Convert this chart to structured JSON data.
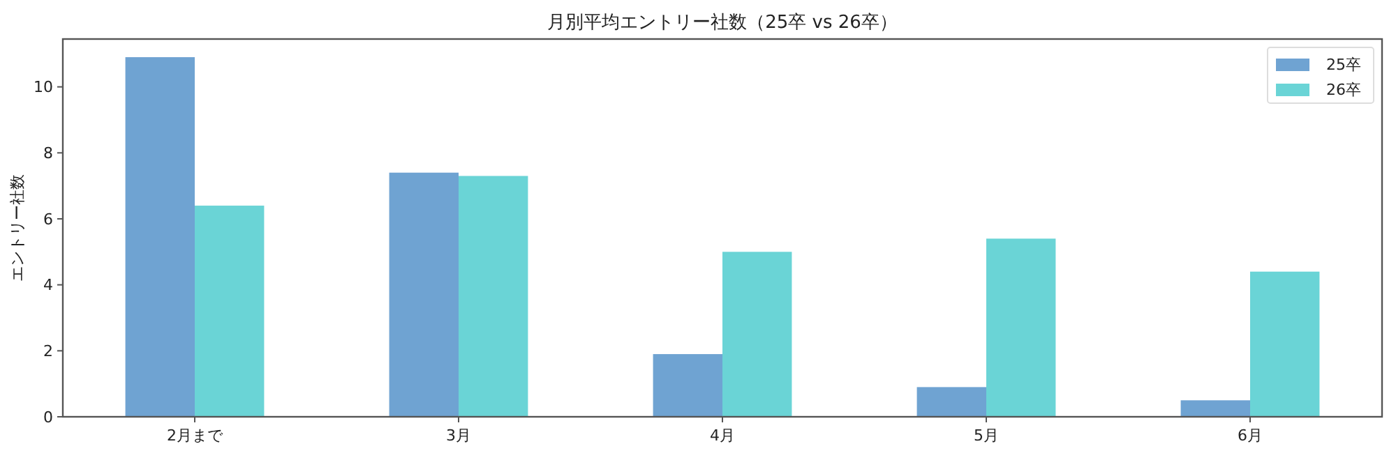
{
  "chart_data": {
    "type": "bar",
    "title": "月別平均エントリー社数（25卒 vs 26卒）",
    "ylabel": "エントリー社数",
    "categories": [
      "2月まで",
      "3月",
      "4月",
      "5月",
      "6月"
    ],
    "series": [
      {
        "name": "25卒",
        "color": "#6fa3d2",
        "values": [
          10.9,
          7.4,
          1.9,
          0.9,
          0.5
        ]
      },
      {
        "name": "26卒",
        "color": "#6ad4d6",
        "values": [
          6.4,
          7.3,
          5.0,
          5.4,
          4.4
        ]
      }
    ],
    "ylim": [
      0,
      11.45
    ],
    "yticks": [
      0,
      2,
      4,
      6,
      8,
      10
    ],
    "legend": "top right",
    "grid": false
  }
}
